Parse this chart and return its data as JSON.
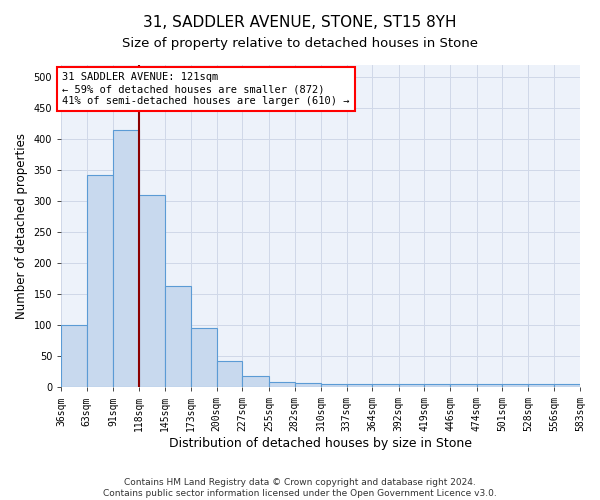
{
  "title": "31, SADDLER AVENUE, STONE, ST15 8YH",
  "subtitle": "Size of property relative to detached houses in Stone",
  "xlabel": "Distribution of detached houses by size in Stone",
  "ylabel": "Number of detached properties",
  "bar_color": "#c8d9ee",
  "bar_edge_color": "#5b9bd5",
  "grid_color": "#d0d8e8",
  "bg_color": "#edf2fa",
  "annotation_text": "31 SADDLER AVENUE: 121sqm\n← 59% of detached houses are smaller (872)\n41% of semi-detached houses are larger (610) →",
  "property_line_x": 121,
  "bins": [
    36,
    63,
    91,
    118,
    145,
    173,
    200,
    227,
    255,
    282,
    310,
    337,
    364,
    392,
    419,
    446,
    474,
    501,
    528,
    556,
    583
  ],
  "counts": [
    100,
    343,
    415,
    310,
    163,
    95,
    42,
    18,
    8,
    6,
    5,
    5,
    5,
    5,
    5,
    5,
    5,
    5,
    5,
    5
  ],
  "footer": "Contains HM Land Registry data © Crown copyright and database right 2024.\nContains public sector information licensed under the Open Government Licence v3.0.",
  "ylim": [
    0,
    520
  ],
  "yticks": [
    0,
    50,
    100,
    150,
    200,
    250,
    300,
    350,
    400,
    450,
    500
  ],
  "title_fontsize": 11,
  "subtitle_fontsize": 9.5,
  "tick_fontsize": 7,
  "ylabel_fontsize": 8.5,
  "xlabel_fontsize": 9,
  "annotation_fontsize": 7.5,
  "footer_fontsize": 6.5
}
